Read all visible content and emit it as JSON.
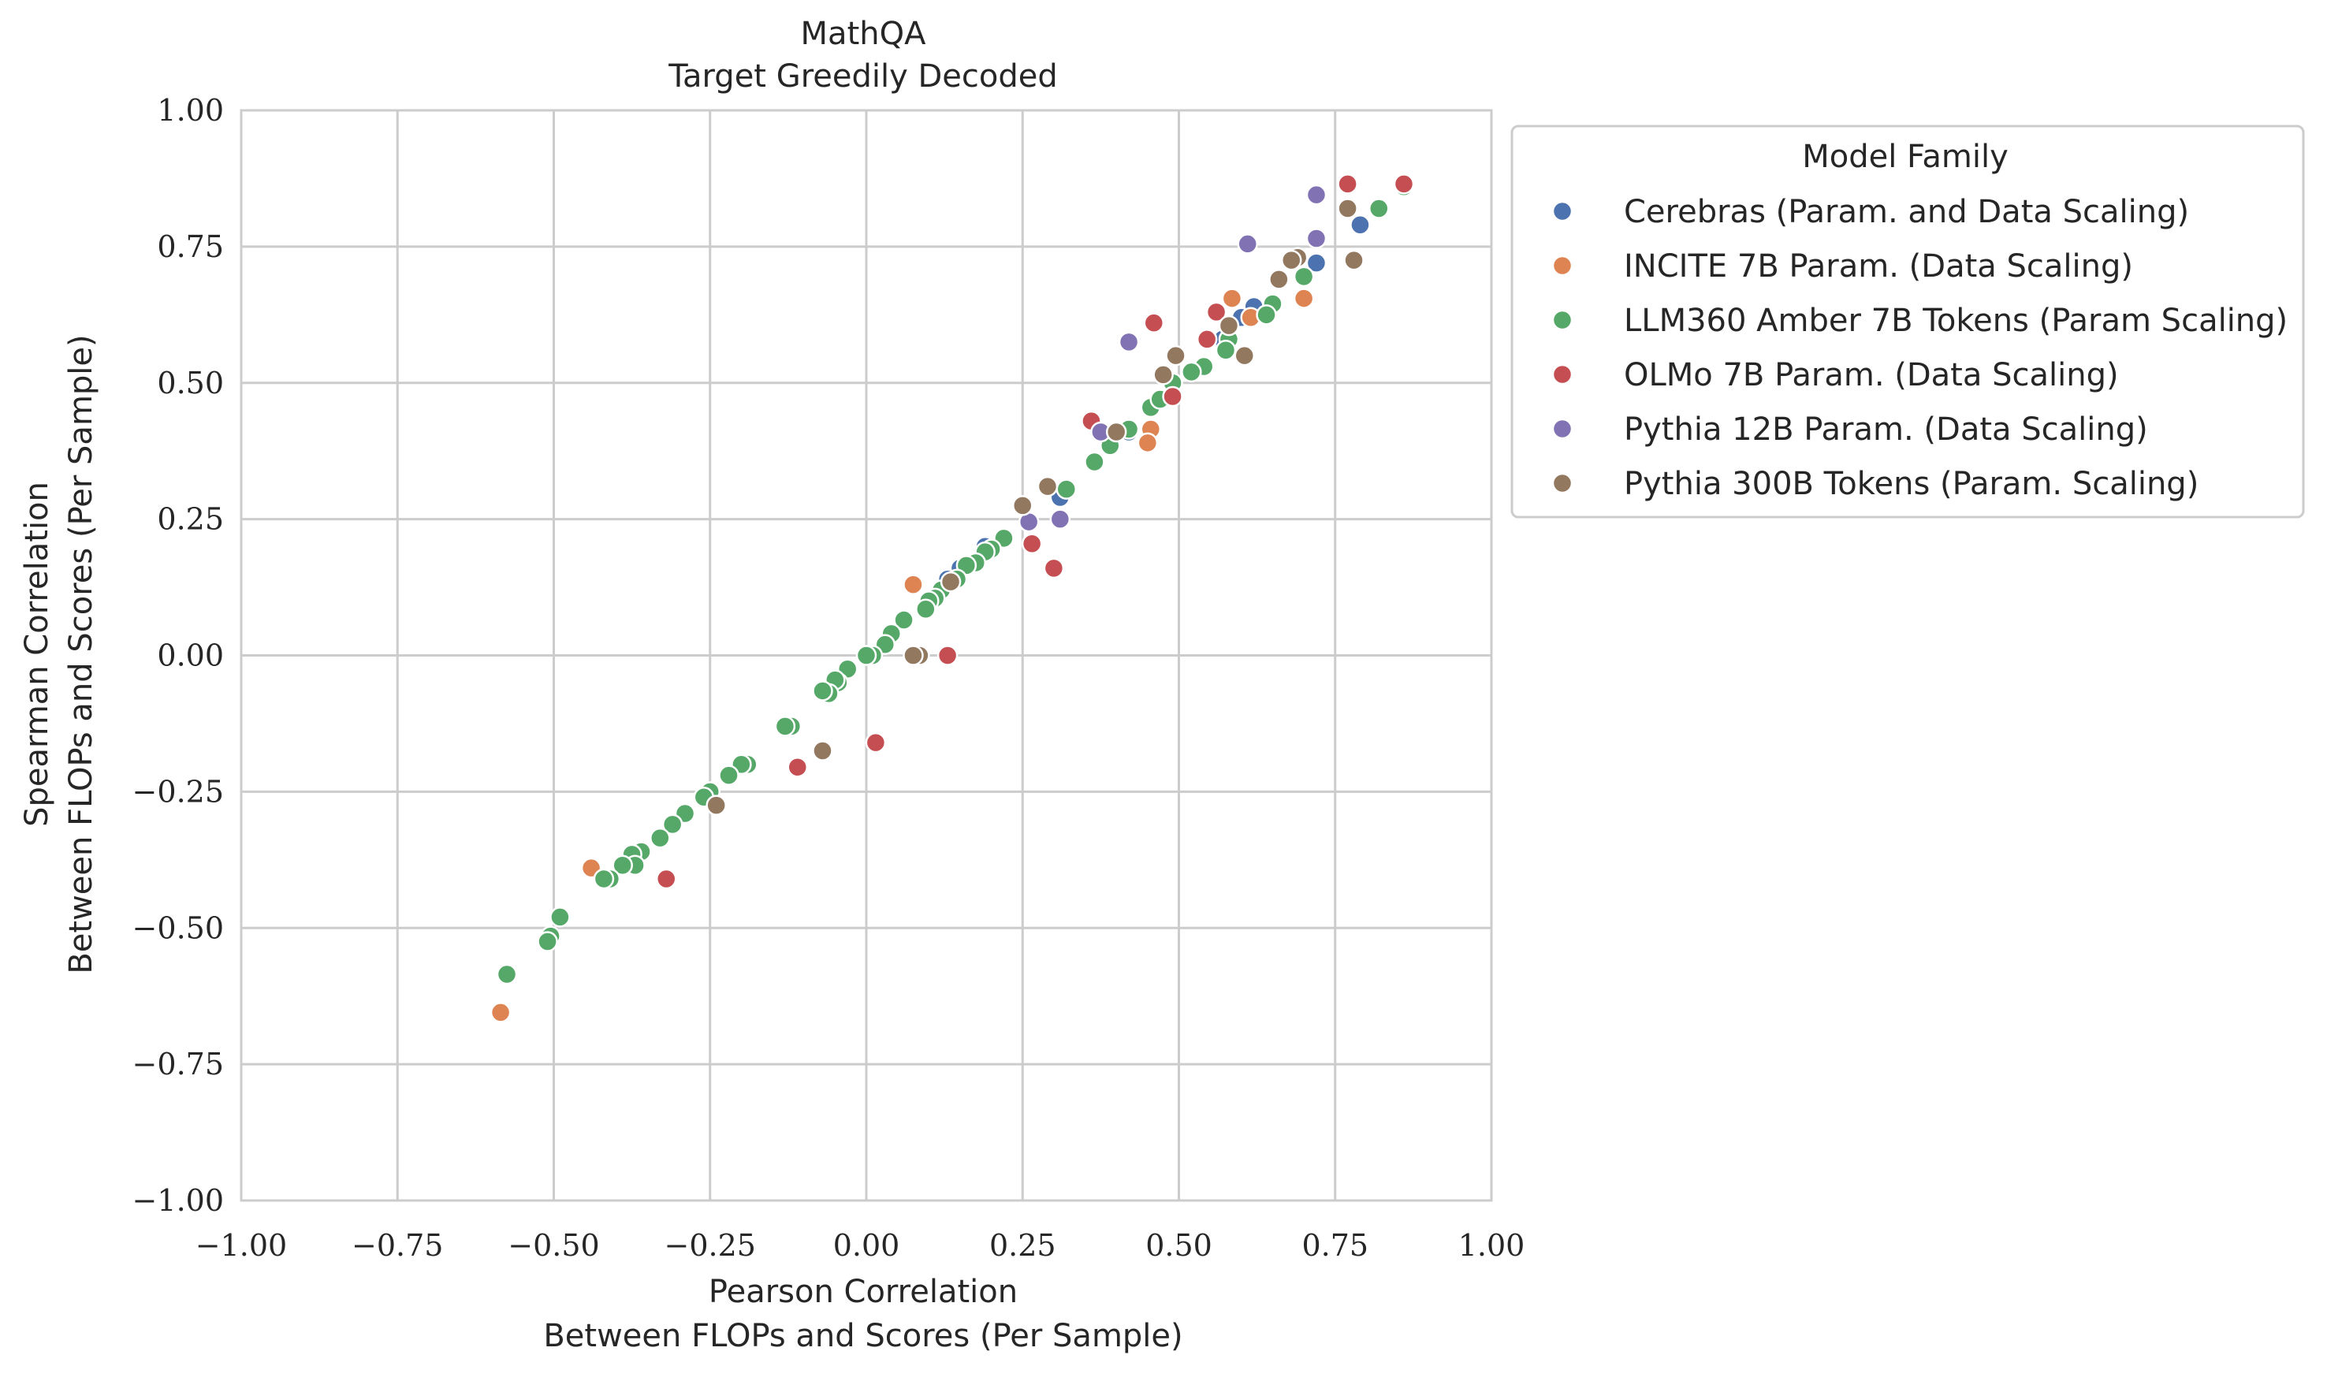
{
  "chart_data": {
    "type": "scatter",
    "title": "MathQA",
    "subtitle": "Target Greedily Decoded",
    "xlabel": [
      "Pearson Correlation",
      "Between FLOPs and Scores (Per Sample)"
    ],
    "ylabel": [
      "Spearman Correlation",
      "Between FLOPs and Scores (Per Sample)"
    ],
    "xlim": [
      -1.0,
      1.0
    ],
    "ylim": [
      -1.0,
      1.0
    ],
    "x_ticks": [
      "−1.00",
      "−0.75",
      "−0.50",
      "−0.25",
      "0.00",
      "0.25",
      "0.50",
      "0.75",
      "1.00"
    ],
    "y_ticks": [
      "1.00",
      "0.75",
      "0.50",
      "0.25",
      "0.00",
      "−0.25",
      "−0.50",
      "−0.75",
      "−1.00"
    ],
    "grid": true,
    "legend_position": "outside-right-top",
    "legend_title": "Model Family",
    "series": [
      {
        "name": "Cerebras (Param. and Data Scaling)",
        "color": "#4c72b0",
        "points": [
          [
            0.86,
            0.865
          ],
          [
            0.79,
            0.79
          ],
          [
            0.72,
            0.72
          ],
          [
            0.62,
            0.64
          ],
          [
            0.6,
            0.62
          ],
          [
            0.58,
            0.6
          ],
          [
            0.57,
            0.58
          ],
          [
            0.42,
            0.41
          ],
          [
            0.31,
            0.29
          ],
          [
            0.19,
            0.2
          ],
          [
            0.15,
            0.16
          ],
          [
            0.13,
            0.14
          ]
        ]
      },
      {
        "name": "INCITE 7B Param. (Data Scaling)",
        "color": "#dd8452",
        "points": [
          [
            0.7,
            0.655
          ],
          [
            0.585,
            0.655
          ],
          [
            0.615,
            0.62
          ],
          [
            0.455,
            0.415
          ],
          [
            0.45,
            0.39
          ],
          [
            0.075,
            0.13
          ],
          [
            -0.44,
            -0.39
          ],
          [
            -0.585,
            -0.655
          ]
        ]
      },
      {
        "name": "LLM360 Amber 7B Tokens (Param Scaling)",
        "color": "#55a868",
        "points": [
          [
            0.86,
            0.86
          ],
          [
            0.82,
            0.82
          ],
          [
            0.7,
            0.695
          ],
          [
            0.65,
            0.645
          ],
          [
            0.64,
            0.625
          ],
          [
            0.58,
            0.58
          ],
          [
            0.575,
            0.56
          ],
          [
            0.54,
            0.53
          ],
          [
            0.52,
            0.52
          ],
          [
            0.49,
            0.5
          ],
          [
            0.455,
            0.455
          ],
          [
            0.47,
            0.47
          ],
          [
            0.42,
            0.415
          ],
          [
            0.39,
            0.385
          ],
          [
            0.365,
            0.355
          ],
          [
            0.32,
            0.305
          ],
          [
            0.22,
            0.215
          ],
          [
            0.2,
            0.195
          ],
          [
            0.19,
            0.19
          ],
          [
            0.175,
            0.17
          ],
          [
            0.16,
            0.165
          ],
          [
            0.145,
            0.14
          ],
          [
            0.12,
            0.12
          ],
          [
            0.11,
            0.105
          ],
          [
            0.1,
            0.1
          ],
          [
            0.095,
            0.085
          ],
          [
            0.06,
            0.065
          ],
          [
            0.04,
            0.04
          ],
          [
            0.03,
            0.02
          ],
          [
            0.01,
            0.0
          ],
          [
            0.0,
            0.0
          ],
          [
            -0.03,
            -0.025
          ],
          [
            -0.045,
            -0.05
          ],
          [
            -0.05,
            -0.045
          ],
          [
            -0.06,
            -0.07
          ],
          [
            -0.07,
            -0.065
          ],
          [
            -0.12,
            -0.13
          ],
          [
            -0.13,
            -0.13
          ],
          [
            -0.19,
            -0.2
          ],
          [
            -0.2,
            -0.2
          ],
          [
            -0.22,
            -0.22
          ],
          [
            -0.25,
            -0.25
          ],
          [
            -0.26,
            -0.26
          ],
          [
            -0.29,
            -0.29
          ],
          [
            -0.31,
            -0.31
          ],
          [
            -0.33,
            -0.335
          ],
          [
            -0.36,
            -0.36
          ],
          [
            -0.375,
            -0.365
          ],
          [
            -0.37,
            -0.385
          ],
          [
            -0.39,
            -0.385
          ],
          [
            -0.41,
            -0.41
          ],
          [
            -0.42,
            -0.41
          ],
          [
            -0.49,
            -0.48
          ],
          [
            -0.505,
            -0.515
          ],
          [
            -0.51,
            -0.525
          ],
          [
            -0.575,
            -0.585
          ]
        ]
      },
      {
        "name": "OLMo 7B Param. (Data Scaling)",
        "color": "#c44e52",
        "points": [
          [
            0.86,
            0.865
          ],
          [
            0.77,
            0.865
          ],
          [
            0.56,
            0.63
          ],
          [
            0.545,
            0.58
          ],
          [
            0.46,
            0.61
          ],
          [
            0.49,
            0.475
          ],
          [
            0.36,
            0.43
          ],
          [
            0.265,
            0.205
          ],
          [
            0.3,
            0.16
          ],
          [
            0.13,
            0.0
          ],
          [
            0.015,
            -0.16
          ],
          [
            -0.11,
            -0.205
          ],
          [
            -0.32,
            -0.41
          ]
        ]
      },
      {
        "name": "Pythia 12B Param. (Data Scaling)",
        "color": "#8172b3",
        "points": [
          [
            0.72,
            0.845
          ],
          [
            0.72,
            0.765
          ],
          [
            0.61,
            0.755
          ],
          [
            0.42,
            0.575
          ],
          [
            0.375,
            0.41
          ],
          [
            0.31,
            0.25
          ],
          [
            0.26,
            0.245
          ]
        ]
      },
      {
        "name": "Pythia 300B Tokens (Param. Scaling)",
        "color": "#937860",
        "points": [
          [
            0.77,
            0.82
          ],
          [
            0.78,
            0.725
          ],
          [
            0.69,
            0.73
          ],
          [
            0.68,
            0.725
          ],
          [
            0.66,
            0.69
          ],
          [
            0.58,
            0.605
          ],
          [
            0.605,
            0.55
          ],
          [
            0.495,
            0.55
          ],
          [
            0.475,
            0.515
          ],
          [
            0.4,
            0.41
          ],
          [
            0.29,
            0.31
          ],
          [
            0.25,
            0.275
          ],
          [
            0.135,
            0.135
          ],
          [
            0.085,
            0.0
          ],
          [
            0.075,
            0.0
          ],
          [
            -0.07,
            -0.175
          ],
          [
            -0.24,
            -0.275
          ]
        ]
      }
    ]
  }
}
